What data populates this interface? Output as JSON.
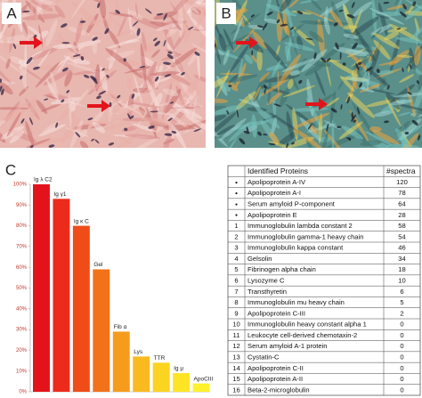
{
  "panels": [
    "A",
    "B",
    "C"
  ],
  "chart_data": {
    "type": "bar",
    "categories": [
      "Ig λ C2",
      "Ig γ1",
      "Ig κ C",
      "Gel",
      "Fib α",
      "Lys",
      "TTR",
      "Ig μ",
      "ApoCIII"
    ],
    "values": [
      100,
      93,
      80,
      59,
      29,
      17,
      14,
      9,
      4
    ],
    "colors": [
      "#e3131b",
      "#ec2b1b",
      "#f04c18",
      "#f2721a",
      "#f59c1d",
      "#f8ba1f",
      "#fbd321",
      "#fde526",
      "#fff12c"
    ],
    "ylim": [
      0,
      100
    ],
    "yticks": [
      {
        "value": 0,
        "label": "0%"
      },
      {
        "value": 10,
        "label": "10%"
      },
      {
        "value": 20,
        "label": "20%"
      },
      {
        "value": 30,
        "label": "30%"
      },
      {
        "value": 40,
        "label": "40%"
      },
      {
        "value": 50,
        "label": "50%"
      },
      {
        "value": 60,
        "label": "60%"
      },
      {
        "value": 70,
        "label": "70%"
      },
      {
        "value": 80,
        "label": "80%"
      },
      {
        "value": 90,
        "label": "90%"
      },
      {
        "value": 100,
        "label": "100%"
      }
    ]
  },
  "table": {
    "header": [
      "Identified Proteins",
      "#spectra"
    ],
    "rows": [
      [
        "●",
        "Apolipoprotein A-IV",
        "120"
      ],
      [
        "●",
        "Apolipoprotein A-I",
        "78"
      ],
      [
        "●",
        "Serum amyloid P-component",
        "64"
      ],
      [
        "●",
        "Apolipoprotein E",
        "28"
      ],
      [
        "1",
        "Immunoglobulin lambda constant 2",
        "58"
      ],
      [
        "2",
        "Immunoglobulin gamma-1 heavy chain",
        "54"
      ],
      [
        "3",
        "Immunoglobulin kappa constant",
        "46"
      ],
      [
        "4",
        "Gelsolin",
        "34"
      ],
      [
        "5",
        "Fibrinogen alpha chain",
        "18"
      ],
      [
        "6",
        "Lysozyme C",
        "10"
      ],
      [
        "7",
        "Transthyretin",
        "6"
      ],
      [
        "8",
        "Immunoglobulin mu heavy chain",
        "5"
      ],
      [
        "9",
        "Apolipoprotein C-III",
        "2"
      ],
      [
        "10",
        "Immunoglobulin heavy constant alpha 1",
        "0"
      ],
      [
        "11",
        "Leukocyte cell-derived chemotaxin-2",
        "0"
      ],
      [
        "12",
        "Serum amyloid A-1 protein",
        "0"
      ],
      [
        "13",
        "Cystatin-C",
        "0"
      ],
      [
        "14",
        "Apolipoprotein C-II",
        "0"
      ],
      [
        "15",
        "Apolipoprotein A-II",
        "0"
      ],
      [
        "16",
        "Beta-2-microglobulin",
        "0"
      ]
    ]
  }
}
